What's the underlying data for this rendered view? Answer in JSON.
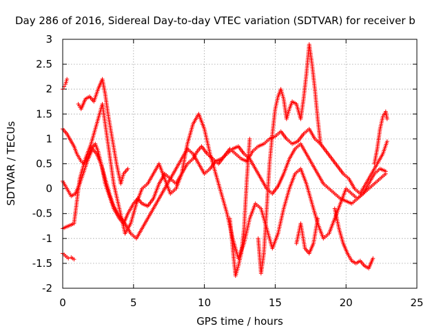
{
  "chart_data": {
    "type": "scatter",
    "title": "Day 286 of 2016, Sidereal Day-to-day VTEC variation (SDTVAR) for receiver b",
    "xlabel": "GPS time / hours",
    "ylabel": "SDTVAR / TECUs",
    "xlim": [
      0,
      25
    ],
    "ylim": [
      -2,
      3
    ],
    "xticks": [
      "0",
      "5",
      "10",
      "15",
      "20",
      "25"
    ],
    "yticks": [
      "-2",
      "-1.5",
      "-1",
      "-0.5",
      "0",
      "0.5",
      "1",
      "1.5",
      "2",
      "2.5",
      "3"
    ],
    "grid": true,
    "marker": "plus",
    "color": "#ff0000",
    "series": [
      {
        "x": [
          0.0,
          0.3,
          0.8,
          1.0,
          1.3,
          1.5,
          1.8,
          2.0,
          2.3,
          2.5,
          2.8,
          3.0,
          3.3,
          3.6,
          4.0,
          4.3,
          4.6,
          5.0,
          5.3,
          5.6,
          6.0,
          6.4,
          6.8,
          7.2,
          7.6,
          8.0,
          8.4,
          8.8,
          9.2,
          9.5,
          9.8,
          10.2,
          10.6,
          11.0,
          11.4,
          11.8,
          12.2,
          12.6,
          13.0,
          13.4,
          13.8,
          14.2,
          14.6,
          15.0,
          15.4,
          15.8,
          16.2,
          16.6,
          17.0,
          17.4,
          17.8,
          18.2,
          18.6,
          19.0,
          19.4,
          19.8,
          20.2,
          20.6,
          21.0,
          21.4,
          21.8,
          22.2,
          22.6,
          22.9
        ],
        "y": [
          1.2,
          1.1,
          0.85,
          0.7,
          0.55,
          0.5,
          0.65,
          0.8,
          0.9,
          0.75,
          0.4,
          0.1,
          -0.15,
          -0.4,
          -0.6,
          -0.7,
          -0.5,
          -0.3,
          -0.2,
          -0.3,
          -0.35,
          -0.2,
          0.1,
          0.3,
          0.2,
          0.1,
          0.3,
          0.5,
          0.6,
          0.75,
          0.85,
          0.7,
          0.6,
          0.5,
          0.65,
          0.8,
          0.7,
          0.6,
          0.55,
          0.75,
          0.85,
          0.9,
          1.0,
          1.05,
          1.15,
          1.0,
          0.9,
          0.95,
          1.1,
          1.2,
          1.0,
          0.9,
          0.75,
          0.6,
          0.45,
          0.3,
          0.2,
          0.0,
          -0.1,
          0.1,
          0.3,
          0.5,
          0.7,
          0.95
        ]
      },
      {
        "x": [
          0.0,
          0.3,
          0.6,
          0.9,
          1.2,
          1.5,
          1.8,
          2.1,
          2.4,
          2.7,
          3.0,
          3.3,
          3.6,
          4.0,
          4.4,
          4.8,
          5.2,
          5.6,
          6.0,
          6.4,
          6.8,
          7.2,
          7.6,
          8.0,
          8.4,
          8.8,
          9.2,
          9.6,
          10.0,
          10.4,
          10.8,
          11.2,
          11.6,
          12.0,
          12.4,
          12.8,
          13.2,
          13.6,
          14.0,
          14.4,
          14.8,
          15.2,
          15.6,
          16.0,
          16.4,
          16.8,
          17.2,
          17.6,
          18.0,
          18.4,
          18.8,
          19.2,
          19.6,
          20.0,
          20.4,
          20.8,
          21.2,
          21.6,
          22.0,
          22.4,
          22.8
        ],
        "y": [
          0.15,
          0.0,
          -0.15,
          -0.1,
          0.1,
          0.35,
          0.6,
          0.8,
          0.7,
          0.5,
          0.2,
          -0.1,
          -0.35,
          -0.55,
          -0.7,
          -0.9,
          -1.0,
          -0.8,
          -0.6,
          -0.4,
          -0.2,
          0.0,
          0.2,
          0.4,
          0.6,
          0.8,
          0.7,
          0.5,
          0.3,
          0.4,
          0.55,
          0.6,
          0.7,
          0.8,
          0.85,
          0.7,
          0.6,
          0.4,
          0.2,
          0.0,
          -0.1,
          0.05,
          0.3,
          0.6,
          0.8,
          0.9,
          0.7,
          0.5,
          0.3,
          0.1,
          0.0,
          -0.1,
          -0.2,
          -0.25,
          -0.3,
          -0.2,
          -0.1,
          0.0,
          0.1,
          0.2,
          0.3
        ]
      },
      {
        "x": [
          0.0,
          0.4,
          0.8,
          1.2,
          1.6,
          2.0,
          2.4,
          2.8,
          3.2,
          3.6,
          4.0,
          4.4,
          4.8,
          5.2,
          5.6,
          6.0,
          6.4,
          6.8,
          7.2,
          7.6,
          8.0,
          8.4,
          8.8,
          9.2,
          9.6,
          10.0,
          10.4,
          10.8,
          11.2,
          11.6,
          12.0,
          12.4,
          12.8,
          13.2,
          13.6,
          14.0,
          14.4,
          14.8,
          15.2,
          15.6,
          16.0,
          16.4,
          16.8,
          17.2,
          17.6,
          18.0,
          18.4,
          18.8,
          19.2,
          19.6,
          20.0,
          20.4,
          20.8,
          21.2,
          21.6,
          22.0,
          22.4,
          22.8
        ],
        "y": [
          -0.8,
          -0.75,
          -0.7,
          0.2,
          0.6,
          0.9,
          1.3,
          1.7,
          0.9,
          0.1,
          -0.4,
          -0.9,
          -0.7,
          -0.3,
          0.0,
          0.1,
          0.3,
          0.5,
          0.2,
          -0.1,
          0.0,
          0.3,
          0.9,
          1.3,
          1.5,
          1.2,
          0.7,
          0.3,
          -0.1,
          -0.5,
          -1.0,
          -1.4,
          -1.1,
          -0.6,
          -0.3,
          -0.4,
          -0.8,
          -1.2,
          -0.9,
          -0.4,
          0.0,
          0.3,
          0.4,
          0.1,
          -0.3,
          -0.7,
          -1.0,
          -0.9,
          -0.6,
          -0.3,
          0.0,
          -0.1,
          -0.2,
          -0.1,
          0.1,
          0.3,
          0.4,
          0.35
        ]
      },
      {
        "x": [
          0.0,
          0.2,
          0.4,
          0.6,
          0.8
        ],
        "y": [
          -1.3,
          -1.35,
          -1.4,
          -1.38,
          -1.42
        ]
      },
      {
        "x": [
          0.0,
          0.1,
          0.2,
          0.3
        ],
        "y": [
          2.0,
          2.05,
          2.1,
          2.2
        ]
      },
      {
        "x": [
          1.1,
          1.3,
          1.6,
          1.9,
          2.2,
          2.5,
          2.8,
          3.0,
          3.2,
          3.5,
          3.8,
          4.1,
          4.3,
          4.6
        ],
        "y": [
          1.7,
          1.6,
          1.8,
          1.85,
          1.75,
          2.0,
          2.2,
          1.9,
          1.5,
          1.0,
          0.5,
          0.1,
          0.3,
          0.4
        ]
      },
      {
        "x": [
          11.8,
          12.0,
          12.2,
          12.4,
          12.6,
          12.8,
          13.0,
          13.2
        ],
        "y": [
          -0.6,
          -1.2,
          -1.75,
          -1.55,
          -1.3,
          -0.8,
          0.2,
          1.0
        ]
      },
      {
        "x": [
          13.8,
          14.0,
          14.2,
          14.4,
          14.6,
          14.8,
          15.0,
          15.2,
          15.4,
          15.6,
          15.8,
          16.0,
          16.2,
          16.5,
          16.8,
          17.0,
          17.2,
          17.4,
          17.6,
          17.8,
          18.0,
          18.2
        ],
        "y": [
          -1.0,
          -1.7,
          -1.3,
          -0.4,
          0.5,
          1.1,
          1.6,
          1.85,
          2.0,
          1.8,
          1.4,
          1.6,
          1.75,
          1.7,
          1.4,
          1.8,
          2.3,
          2.9,
          2.5,
          2.0,
          1.4,
          0.9
        ]
      },
      {
        "x": [
          16.5,
          16.8,
          17.1,
          17.4,
          17.7,
          18.0
        ],
        "y": [
          -1.1,
          -0.7,
          -1.2,
          -1.3,
          -1.1,
          -0.6
        ]
      },
      {
        "x": [
          19.2,
          19.5,
          19.8,
          20.1,
          20.4,
          20.7,
          21.0,
          21.3,
          21.6,
          21.9
        ],
        "y": [
          -0.4,
          -0.8,
          -1.1,
          -1.3,
          -1.45,
          -1.5,
          -1.45,
          -1.55,
          -1.6,
          -1.4
        ]
      },
      {
        "x": [
          22.0,
          22.2,
          22.4,
          22.6,
          22.8,
          22.9
        ],
        "y": [
          0.5,
          0.8,
          1.2,
          1.45,
          1.55,
          1.4
        ]
      }
    ]
  }
}
